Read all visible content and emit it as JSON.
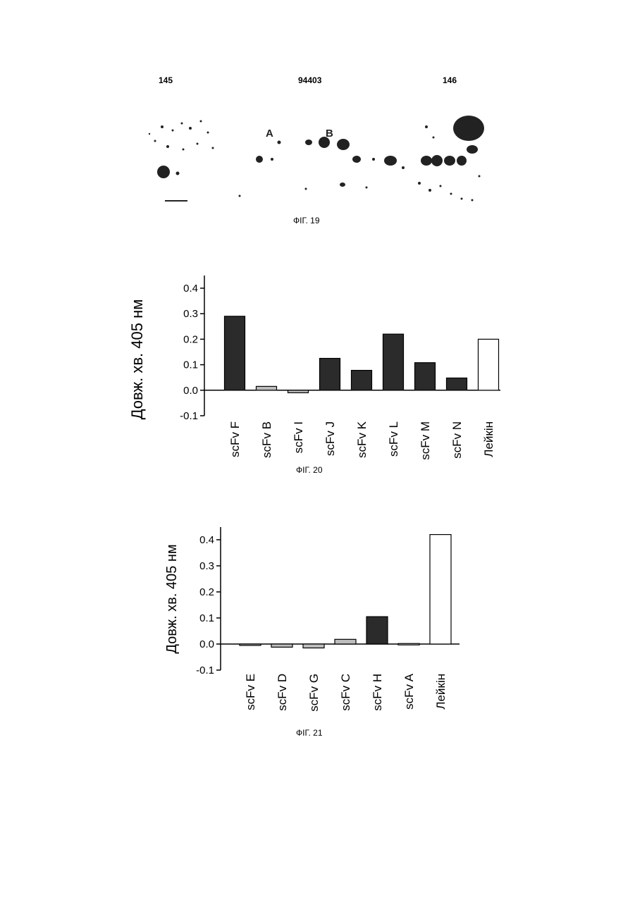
{
  "header": {
    "left": "145",
    "center": "94403",
    "right": "146"
  },
  "figure19": {
    "caption": "ФІГ. 19",
    "labels": [
      "A",
      "B"
    ]
  },
  "chart_data": [
    {
      "type": "bar",
      "caption": "ФІГ. 20",
      "ylabel": "Довж. хв. 405 нм",
      "ylim": [
        -0.1,
        0.4
      ],
      "yticks": [
        "0.4",
        "0.3",
        "0.2",
        "0.1",
        "0.0",
        "-0.1"
      ],
      "categories": [
        "scFv F",
        "scFv B",
        "scFv I",
        "scFv J",
        "scFv K",
        "scFv L",
        "scFv M",
        "scFv N",
        "Лейкін"
      ],
      "values": [
        0.29,
        0.015,
        -0.01,
        0.125,
        0.078,
        0.22,
        0.108,
        0.048,
        0.2
      ],
      "fill": [
        "dark",
        "light",
        "light",
        "dark",
        "dark",
        "dark",
        "dark",
        "dark",
        "white"
      ]
    },
    {
      "type": "bar",
      "caption": "ФІГ. 21",
      "ylabel": "Довж. хв. 405 нм",
      "ylim": [
        -0.1,
        0.4
      ],
      "yticks": [
        "0.4",
        "0.3",
        "0.2",
        "0.1",
        "0.0",
        "-0.1"
      ],
      "categories": [
        "scFv E",
        "scFv D",
        "scFv G",
        "scFv C",
        "scFv H",
        "scFv A",
        "Лейкін"
      ],
      "values": [
        -0.002,
        -0.012,
        -0.015,
        0.018,
        0.105,
        0.002,
        0.42
      ],
      "fill": [
        "light",
        "light",
        "light",
        "light",
        "dark",
        "light",
        "white"
      ]
    }
  ],
  "colors": {
    "dark": "#2b2b2b",
    "light": "#bdbdbd",
    "white": "#ffffff",
    "axis": "#000000"
  }
}
